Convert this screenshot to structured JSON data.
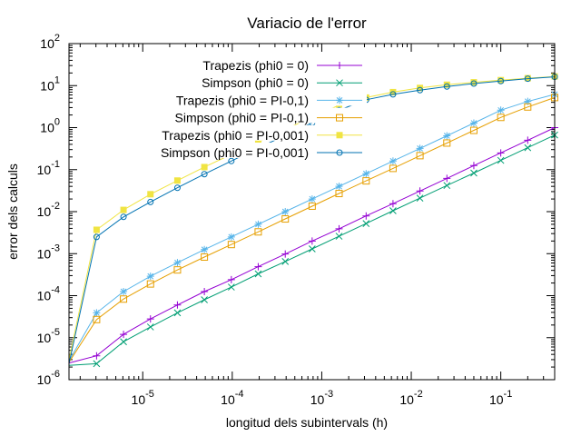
{
  "chart_data": {
    "type": "line",
    "title": "Variacio de l'error",
    "xlabel": "longitud dels subintervals (h)",
    "ylabel": "error dels calculs",
    "x_scale": "log",
    "y_scale": "log",
    "xlim": [
      1.5e-06,
      0.4
    ],
    "ylim": [
      1e-06,
      100
    ],
    "x_ticks": [
      {
        "value": 1e-05,
        "base": "10",
        "exp": "-5"
      },
      {
        "value": 0.0001,
        "base": "10",
        "exp": "-4"
      },
      {
        "value": 0.001,
        "base": "10",
        "exp": "-3"
      },
      {
        "value": 0.01,
        "base": "10",
        "exp": "-2"
      },
      {
        "value": 0.1,
        "base": "10",
        "exp": "-1"
      }
    ],
    "y_ticks": [
      {
        "value": 1e-06,
        "base": "10",
        "exp": "-6"
      },
      {
        "value": 1e-05,
        "base": "10",
        "exp": "-5"
      },
      {
        "value": 0.0001,
        "base": "10",
        "exp": "-4"
      },
      {
        "value": 0.001,
        "base": "10",
        "exp": "-3"
      },
      {
        "value": 0.01,
        "base": "10",
        "exp": "-2"
      },
      {
        "value": 0.1,
        "base": "10",
        "exp": "-1"
      },
      {
        "value": 1,
        "base": "10",
        "exp": "0"
      },
      {
        "value": 10,
        "base": "10",
        "exp": "1"
      },
      {
        "value": 100,
        "base": "10",
        "exp": "2"
      }
    ],
    "grid": false,
    "legend_position": "top-right",
    "x": [
      1.5e-06,
      3.05e-06,
      6.1e-06,
      1.22e-05,
      2.44e-05,
      4.88e-05,
      9.77e-05,
      0.000195,
      0.000391,
      0.000781,
      0.00156,
      0.00313,
      0.00625,
      0.0125,
      0.025,
      0.05,
      0.1,
      0.2,
      0.4
    ],
    "series": [
      {
        "name": "Trapezis (phi0 = 0)",
        "color": "#9400d3",
        "marker": "plus",
        "values": [
          2.5e-06,
          3.7e-06,
          1.2e-05,
          2.8e-05,
          6e-05,
          0.000125,
          0.00024,
          0.00049,
          0.00098,
          0.002,
          0.0039,
          0.0079,
          0.0155,
          0.031,
          0.062,
          0.125,
          0.25,
          0.5,
          1.0
        ]
      },
      {
        "name": "Simpson (phi0 = 0)",
        "color": "#009e73",
        "marker": "x",
        "values": [
          2.2e-06,
          2.4e-06,
          8e-06,
          1.8e-05,
          3.9e-05,
          8e-05,
          0.00016,
          0.00033,
          0.00065,
          0.0013,
          0.0026,
          0.0052,
          0.0105,
          0.021,
          0.042,
          0.083,
          0.166,
          0.333,
          0.666
        ]
      },
      {
        "name": "Trapezis (phi0 = PI-0,1)",
        "color": "#56b4e9",
        "marker": "star",
        "values": [
          2.8e-06,
          3.9e-05,
          0.000125,
          0.00029,
          0.00061,
          0.00125,
          0.0025,
          0.005,
          0.01,
          0.02,
          0.04,
          0.08,
          0.16,
          0.32,
          0.64,
          1.28,
          2.6,
          4.2,
          6.2
        ]
      },
      {
        "name": "Simpson (phi0 = PI-0,1)",
        "color": "#e69f00",
        "marker": "square-open",
        "values": [
          2.6e-06,
          2.7e-05,
          8.3e-05,
          0.00019,
          0.00041,
          0.00083,
          0.00165,
          0.0033,
          0.0067,
          0.0135,
          0.027,
          0.054,
          0.107,
          0.215,
          0.43,
          0.86,
          1.75,
          3.1,
          5.2
        ]
      },
      {
        "name": "Trapezis (phi0 = PI-0,001)",
        "color": "#f0e442",
        "marker": "square-filled",
        "values": [
          3e-06,
          0.0037,
          0.011,
          0.026,
          0.055,
          0.115,
          0.23,
          0.45,
          0.9,
          1.8,
          3.4,
          5.2,
          7,
          8.8,
          10.5,
          12,
          13.5,
          15,
          16.5
        ]
      },
      {
        "name": "Simpson (phi0 = PI-0,001)",
        "color": "#0072b2",
        "marker": "circle-open",
        "values": [
          2.4e-06,
          0.0025,
          0.0075,
          0.017,
          0.037,
          0.078,
          0.16,
          0.33,
          0.65,
          1.3,
          2.6,
          4.6,
          6.2,
          7.8,
          9.5,
          11.2,
          12.8,
          14.6,
          16.2
        ]
      }
    ]
  }
}
